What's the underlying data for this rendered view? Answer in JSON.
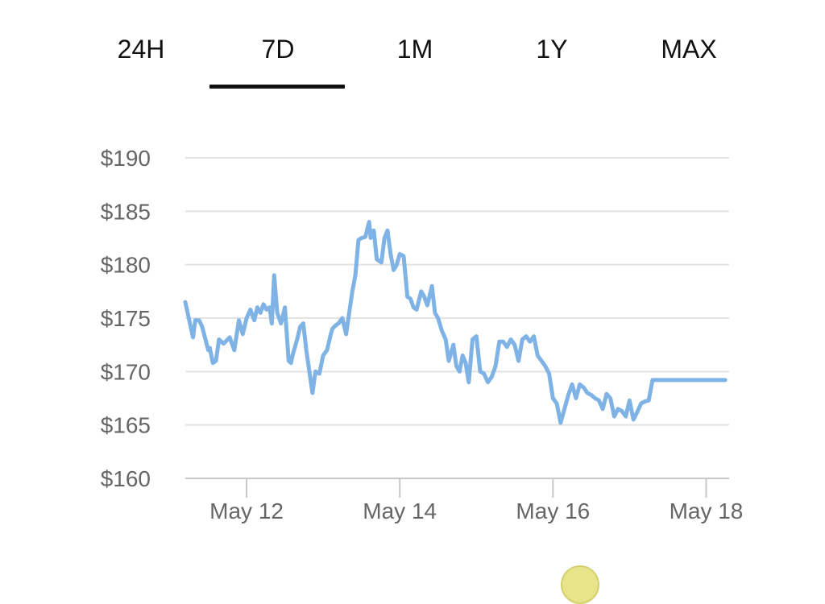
{
  "tabs": [
    {
      "label": "24H",
      "active": false
    },
    {
      "label": "7D",
      "active": true
    },
    {
      "label": "1M",
      "active": false
    },
    {
      "label": "1Y",
      "active": false
    },
    {
      "label": "MAX",
      "active": false
    }
  ],
  "colors": {
    "line": "#7fb3e6",
    "grid": "#e3e3e3",
    "axis": "#c8c8c8",
    "tick_text": "#666666",
    "tab_text": "#111111"
  },
  "chart_data": {
    "type": "line",
    "title": "",
    "xlabel": "",
    "ylabel": "",
    "ylim": [
      160,
      190
    ],
    "y_ticks": [
      {
        "value": 190,
        "label": "$190"
      },
      {
        "value": 185,
        "label": "$185"
      },
      {
        "value": 180,
        "label": "$180"
      },
      {
        "value": 175,
        "label": "$175"
      },
      {
        "value": 170,
        "label": "$170"
      },
      {
        "value": 165,
        "label": "$165"
      },
      {
        "value": 160,
        "label": "$160"
      }
    ],
    "x_ticks": [
      {
        "day": 12,
        "label": "May 12"
      },
      {
        "day": 14,
        "label": "May 14"
      },
      {
        "day": 16,
        "label": "May 16"
      },
      {
        "day": 18,
        "label": "May 18"
      }
    ],
    "xlim_day": [
      11.2,
      18.3
    ],
    "grid": true,
    "series": [
      {
        "x_day": [
          11.2,
          11.3,
          11.33,
          11.38,
          11.42,
          11.5,
          11.52,
          11.56,
          11.6,
          11.64,
          11.7,
          11.78,
          11.84,
          11.9,
          11.95,
          12.0,
          12.05,
          12.1,
          12.14,
          12.18,
          12.22,
          12.26,
          12.3,
          12.33,
          12.36,
          12.4,
          12.45,
          12.5,
          12.55,
          12.58,
          12.6,
          12.64,
          12.66,
          12.7,
          12.74,
          12.78,
          12.82,
          12.86,
          12.9,
          12.95,
          13.0,
          13.05,
          13.1,
          13.12,
          13.16,
          13.2,
          13.25,
          13.3,
          13.35,
          13.38,
          13.42,
          13.46,
          13.5,
          13.55,
          13.6,
          13.62,
          13.66,
          13.7,
          13.76,
          13.8,
          13.84,
          13.88,
          13.92,
          13.96,
          14.0,
          14.05,
          14.1,
          14.14,
          14.18,
          14.22,
          14.28,
          14.32,
          14.36,
          14.42,
          14.46,
          14.5,
          14.55,
          14.6,
          14.64,
          14.7,
          14.74,
          14.78,
          14.82,
          14.86,
          14.9,
          14.95,
          15.0,
          15.05,
          15.1,
          15.15,
          15.2,
          15.25,
          15.3,
          15.35,
          15.4,
          15.45,
          15.5,
          15.55,
          15.6,
          15.65,
          15.7,
          15.75,
          15.8,
          15.85,
          15.9,
          15.95,
          16.0,
          16.05,
          16.1,
          16.15,
          16.2,
          16.25,
          16.3,
          16.35,
          16.4,
          16.45,
          16.5,
          16.55,
          16.6,
          16.65,
          16.7,
          16.75,
          16.8,
          16.85,
          16.9,
          16.95,
          17.0,
          17.05,
          17.1,
          17.15,
          17.2,
          17.25,
          17.3,
          17.35,
          17.4,
          17.45,
          17.5,
          17.55,
          17.6,
          17.65,
          17.7,
          17.75,
          17.8,
          17.85,
          17.9,
          17.95,
          18.0,
          18.05,
          18.1,
          18.15,
          18.2,
          18.25
        ],
        "values": [
          176.5,
          173.2,
          174.8,
          174.8,
          174.2,
          172.0,
          172.2,
          170.8,
          171.0,
          173.0,
          172.6,
          173.2,
          172.0,
          174.8,
          173.5,
          175.0,
          175.8,
          174.8,
          176.0,
          175.5,
          176.3,
          175.8,
          176.0,
          174.5,
          179.0,
          175.5,
          174.5,
          176.0,
          171.0,
          170.8,
          171.5,
          172.5,
          173.0,
          174.2,
          174.5,
          172.0,
          170.0,
          168.0,
          170.0,
          169.8,
          171.5,
          172.0,
          173.5,
          174.0,
          174.3,
          174.5,
          175.0,
          173.5,
          176.0,
          177.5,
          179.0,
          182.3,
          182.5,
          182.6,
          184.0,
          182.5,
          183.2,
          180.5,
          180.2,
          182.5,
          183.2,
          181.0,
          179.5,
          180.0,
          181.0,
          180.8,
          177.0,
          176.8,
          176.0,
          175.8,
          177.5,
          177.0,
          176.2,
          178.0,
          175.5,
          175.0,
          173.8,
          173.0,
          171.0,
          172.5,
          170.5,
          170.0,
          171.5,
          170.8,
          169.0,
          173.0,
          173.3,
          170.0,
          169.8,
          169.0,
          169.5,
          170.5,
          172.8,
          172.8,
          172.3,
          173.0,
          172.5,
          171.0,
          173.0,
          173.3,
          172.8,
          173.3,
          171.5,
          171.0,
          170.5,
          169.8,
          167.5,
          167.0,
          165.2,
          166.5,
          167.8,
          168.8,
          167.5,
          168.8,
          168.5,
          168.0,
          167.8,
          167.5,
          167.3,
          166.5,
          167.9,
          167.5,
          165.8,
          166.5,
          166.3,
          165.8,
          167.3,
          165.5,
          166.2,
          167.0,
          167.2,
          167.3,
          169.2,
          169.2,
          169.2,
          169.2,
          169.2,
          169.2,
          169.2,
          169.2,
          169.2,
          169.2,
          169.2,
          169.2,
          169.2,
          169.2,
          169.2,
          169.2,
          169.2,
          169.2,
          169.2,
          169.2
        ]
      }
    ]
  }
}
